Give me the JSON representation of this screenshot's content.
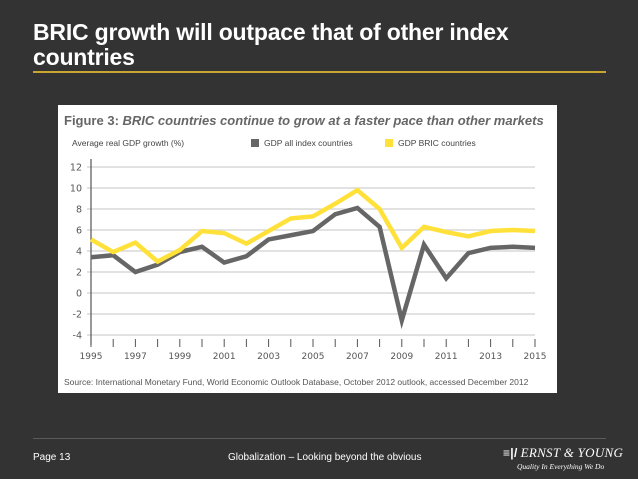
{
  "slide": {
    "title": "BRIC growth will outpace that of other index countries",
    "colors": {
      "background": "#333333",
      "title_rule": "#c8a630"
    }
  },
  "figure": {
    "label": "Figure 3:",
    "title": "BRIC countries continue to grow at a faster pace than other markets",
    "source": "Source: International Monetary Fund, World Economic Outlook Database, October 2012 outlook, accessed December 2012"
  },
  "chart_data": {
    "type": "line",
    "title": "BRIC countries continue to grow at a faster pace than other markets",
    "xlabel": "",
    "ylabel": "Average real GDP growth (%)",
    "x": [
      1995,
      1996,
      1997,
      1998,
      1999,
      2000,
      2001,
      2002,
      2003,
      2004,
      2005,
      2006,
      2007,
      2008,
      2009,
      2010,
      2011,
      2012,
      2013,
      2014,
      2015
    ],
    "x_tick_labels": [
      "1995",
      "1997",
      "1999",
      "2001",
      "2003",
      "2005",
      "2007",
      "2009",
      "2011",
      "2013",
      "2015"
    ],
    "y_tick_labels": [
      "12",
      "10",
      "8",
      "6",
      "4",
      "2",
      "0",
      "-2",
      "-4"
    ],
    "y_ticks": [
      12,
      10,
      8,
      6,
      4,
      2,
      0,
      -2,
      -4
    ],
    "ylim": [
      -4,
      12
    ],
    "xlim": [
      1995,
      2015
    ],
    "grid": true,
    "legend_position": "top",
    "series": [
      {
        "name": "GDP all index countries",
        "color": "#666666",
        "values": [
          3.4,
          3.6,
          2.0,
          2.7,
          3.9,
          4.4,
          2.9,
          3.5,
          5.1,
          5.5,
          5.9,
          7.5,
          8.1,
          6.3,
          -2.6,
          4.6,
          1.4,
          3.8,
          4.3,
          4.4,
          4.3
        ]
      },
      {
        "name": "GDP BRIC countries",
        "color": "#ffe13a",
        "values": [
          5.1,
          3.9,
          4.8,
          3.0,
          4.1,
          5.9,
          5.7,
          4.7,
          5.9,
          7.1,
          7.3,
          8.5,
          9.8,
          8.0,
          4.3,
          6.3,
          5.8,
          5.4,
          5.9,
          6.0,
          5.9
        ]
      }
    ]
  },
  "footer": {
    "page": "Page 13",
    "center_text": "Globalization – Looking beyond the obvious",
    "logo_mark": "≡|/",
    "logo_name": "ERNST & YOUNG",
    "logo_tagline": "Quality In Everything We Do"
  }
}
